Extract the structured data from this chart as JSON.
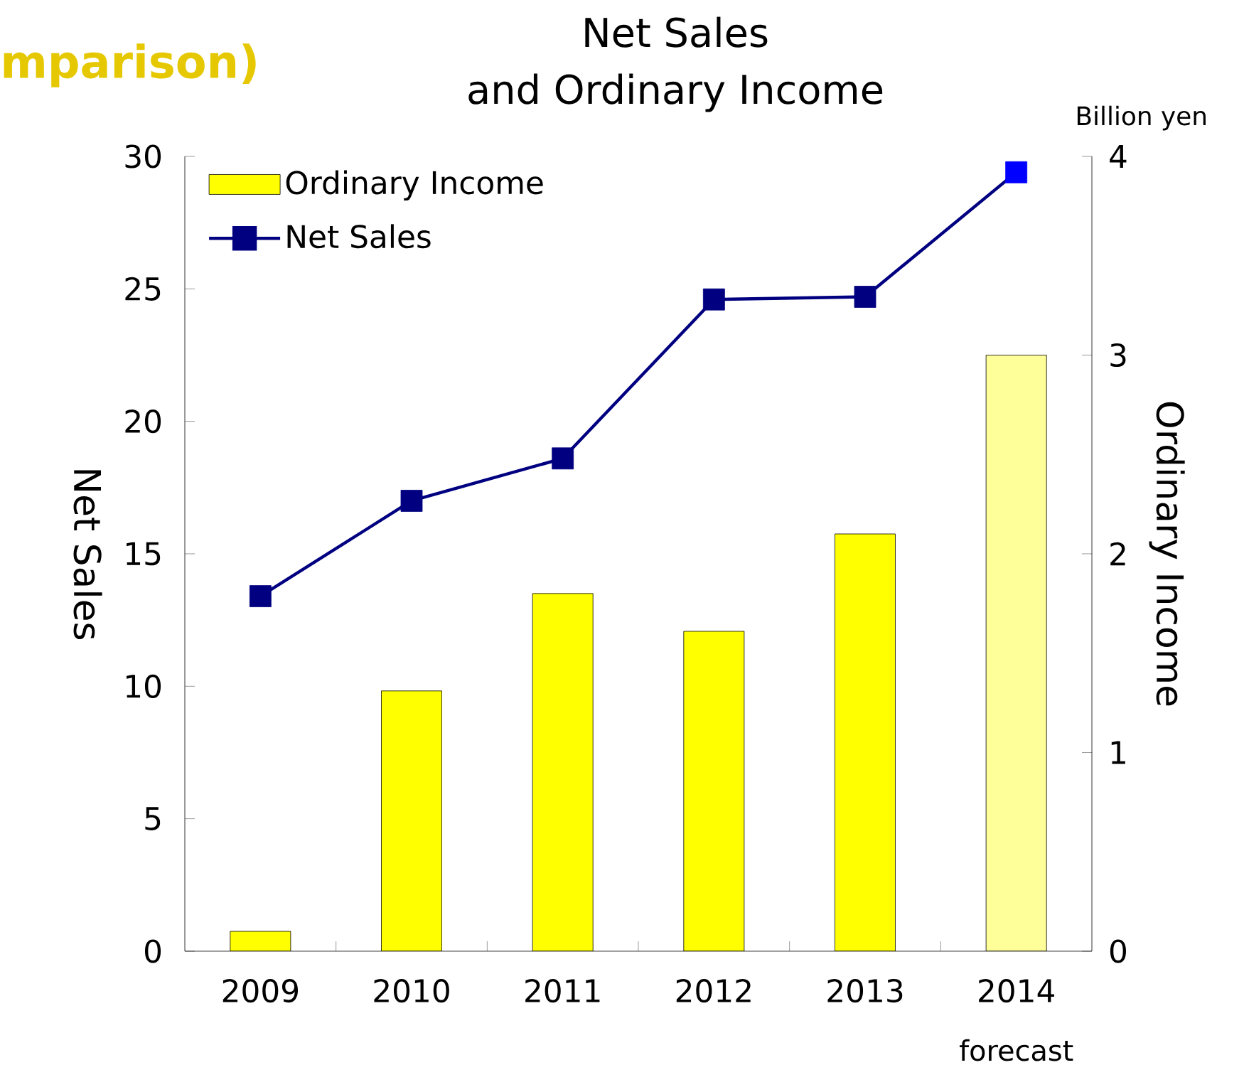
{
  "chart_data": {
    "type": "bar",
    "title": "Net Sales",
    "subtitle": "and Ordinary Income",
    "ylabel": "Net Sales",
    "y2label": "Ordinary Income",
    "annotations": [
      "mparison)",
      "Billion yen",
      "forecast"
    ],
    "categories": [
      "2009",
      "2010",
      "2011",
      "2012",
      "2013",
      "2014"
    ],
    "series": [
      {
        "name": "Ordinary Income",
        "axis": "y2",
        "color": "#ffff00",
        "colors": [
          "#ffff00",
          "#ffff00",
          "#ffff00",
          "#ffff00",
          "#ffff00",
          "#ffff99"
        ],
        "values": [
          0.1,
          1.31,
          1.8,
          1.61,
          2.1,
          3.0
        ]
      },
      {
        "name": "Net Sales",
        "type": "line",
        "axis": "y",
        "color": "#000080",
        "colors": [
          "#000080",
          "#000080",
          "#000080",
          "#000080",
          "#000080",
          "#0000ff"
        ],
        "values": [
          13.4,
          17.0,
          18.6,
          24.6,
          24.7,
          29.4
        ]
      }
    ],
    "ylim": [
      0,
      30
    ],
    "yticks": [
      0,
      5,
      10,
      15,
      20,
      25,
      30
    ],
    "y2lim": [
      0,
      4
    ],
    "y2ticks": [
      0,
      1,
      2,
      3,
      4
    ],
    "grid": false,
    "legend": "top left",
    "marker": "square",
    "line_style": "solid"
  }
}
